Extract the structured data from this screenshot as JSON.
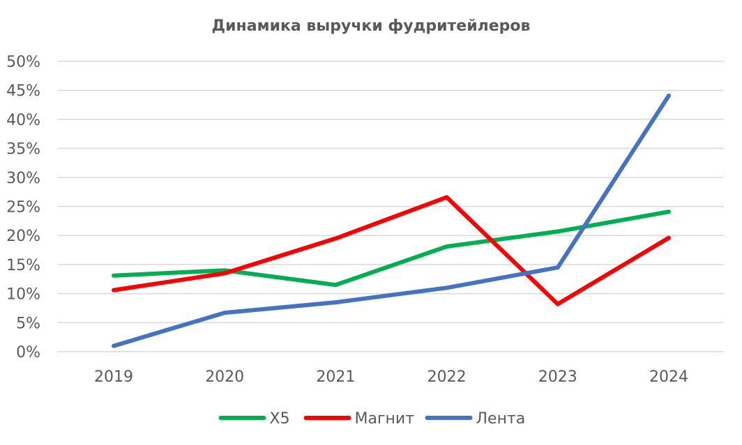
{
  "chart_data": {
    "type": "line",
    "title": "Динамика выручки фудритейлеров",
    "xlabel": "",
    "ylabel": "",
    "categories": [
      "2019",
      "2020",
      "2021",
      "2022",
      "2023",
      "2024"
    ],
    "ylim": [
      0,
      50
    ],
    "yticks": [
      "0%",
      "5%",
      "10%",
      "15%",
      "20%",
      "25%",
      "30%",
      "35%",
      "40%",
      "45%",
      "50%"
    ],
    "y_unit": "%",
    "grid": true,
    "legend_position": "bottom",
    "series": [
      {
        "name": "X5",
        "color": "#00b050",
        "values": [
          13.1,
          14.0,
          11.5,
          18.1,
          20.7,
          24.1
        ]
      },
      {
        "name": "Магнит",
        "color": "#ff0000",
        "values": [
          10.6,
          13.5,
          19.5,
          26.6,
          8.2,
          19.6
        ]
      },
      {
        "name": "Лента",
        "color": "#4472c4",
        "values": [
          1.0,
          6.7,
          8.5,
          11.0,
          14.5,
          44.1
        ]
      }
    ]
  }
}
